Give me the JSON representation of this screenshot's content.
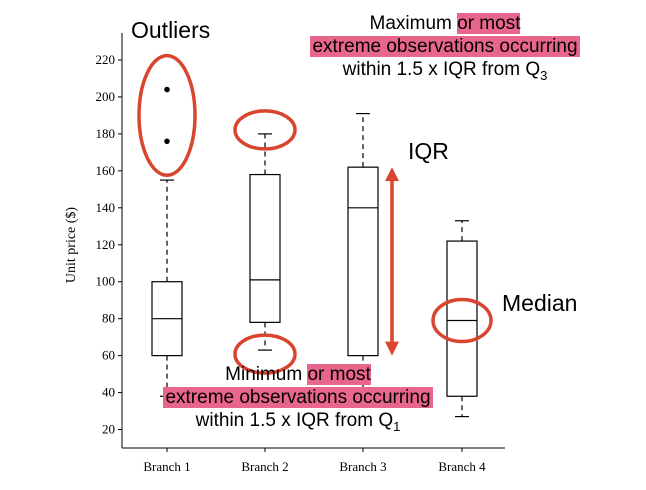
{
  "chart_data": {
    "type": "box",
    "ylabel": "Unit price ($)",
    "ylim": [
      10,
      220
    ],
    "yticks": [
      20,
      40,
      60,
      80,
      100,
      120,
      140,
      160,
      180,
      200,
      220
    ],
    "categories": [
      "Branch 1",
      "Branch 2",
      "Branch 3",
      "Branch 4"
    ],
    "boxes": [
      {
        "category": "Branch 1",
        "whisker_low": 38,
        "q1": 60,
        "median": 80,
        "q3": 100,
        "whisker_high": 155,
        "outliers": [
          176,
          204
        ]
      },
      {
        "category": "Branch 2",
        "whisker_low": 63,
        "q1": 78,
        "median": 101,
        "q3": 158,
        "whisker_high": 180,
        "outliers": []
      },
      {
        "category": "Branch 3",
        "whisker_low": 38,
        "q1": 60,
        "median": 140,
        "q3": 162,
        "whisker_high": 191,
        "outliers": []
      },
      {
        "category": "Branch 4",
        "whisker_low": 27,
        "q1": 38,
        "median": 79,
        "q3": 122,
        "whisker_high": 133,
        "outliers": []
      }
    ],
    "annotation_color": "#d9452e",
    "highlight_color": "#e8658c"
  },
  "annotations": {
    "outliers": "Outliers",
    "iqr": "IQR",
    "median": "Median",
    "maximum": {
      "line1_plain": "Maximum ",
      "line1_highlight": "or most",
      "line2_highlight": "extreme observations occurring",
      "line3_plain": "within 1.5 x IQR from Q",
      "line3_sub": "3"
    },
    "minimum": {
      "line1_plain": "Minimum ",
      "line1_highlight": "or most",
      "line2_highlight": "extreme observations occurring",
      "line3_plain": "within 1.5 x IQR from Q",
      "line3_sub": "1"
    }
  }
}
